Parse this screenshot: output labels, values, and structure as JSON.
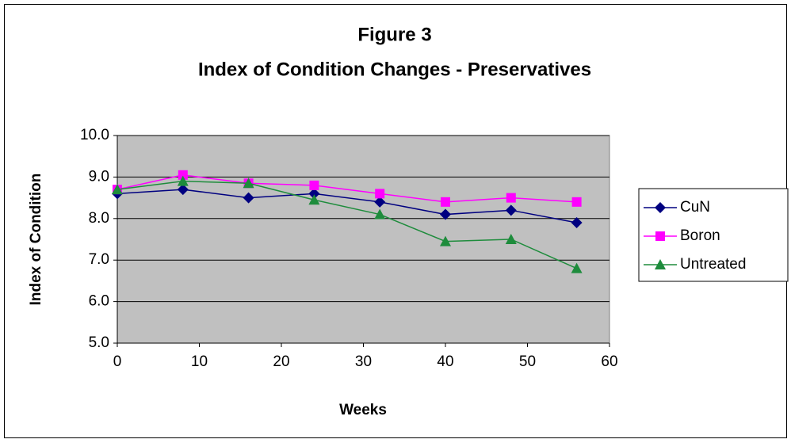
{
  "chart_data": {
    "type": "line",
    "title": "Figure 3",
    "subtitle": "Index of Condition Changes - Preservatives",
    "x_label": "Weeks",
    "y_label": "Index of Condition",
    "x": [
      0,
      8,
      16,
      24,
      32,
      40,
      48,
      56
    ],
    "series": [
      {
        "name": "CuN",
        "color": "#000080",
        "marker": "diamond",
        "values": [
          8.6,
          8.7,
          8.5,
          8.6,
          8.4,
          8.1,
          8.2,
          7.9
        ]
      },
      {
        "name": "Boron",
        "color": "#FF00FF",
        "marker": "square",
        "values": [
          8.7,
          9.05,
          8.85,
          8.8,
          8.6,
          8.4,
          8.5,
          8.4
        ]
      },
      {
        "name": "Untreated",
        "color": "#1E8C3C",
        "marker": "triangle",
        "values": [
          8.7,
          8.9,
          8.85,
          8.45,
          8.1,
          7.45,
          7.5,
          6.8
        ]
      }
    ],
    "xlim": [
      0,
      60
    ],
    "xticks": [
      0,
      10,
      20,
      30,
      40,
      50,
      60
    ],
    "ylim": [
      5,
      10
    ],
    "yticks": [
      {
        "value": 5,
        "label": "5.0"
      },
      {
        "value": 6,
        "label": "6.0"
      },
      {
        "value": 7,
        "label": "7.0"
      },
      {
        "value": 8,
        "label": "8.0"
      },
      {
        "value": 9,
        "label": "9.0"
      },
      {
        "value": 10,
        "label": "10.0"
      }
    ],
    "grid": true,
    "plot_background": "#C0C0C0",
    "legend": "right"
  }
}
